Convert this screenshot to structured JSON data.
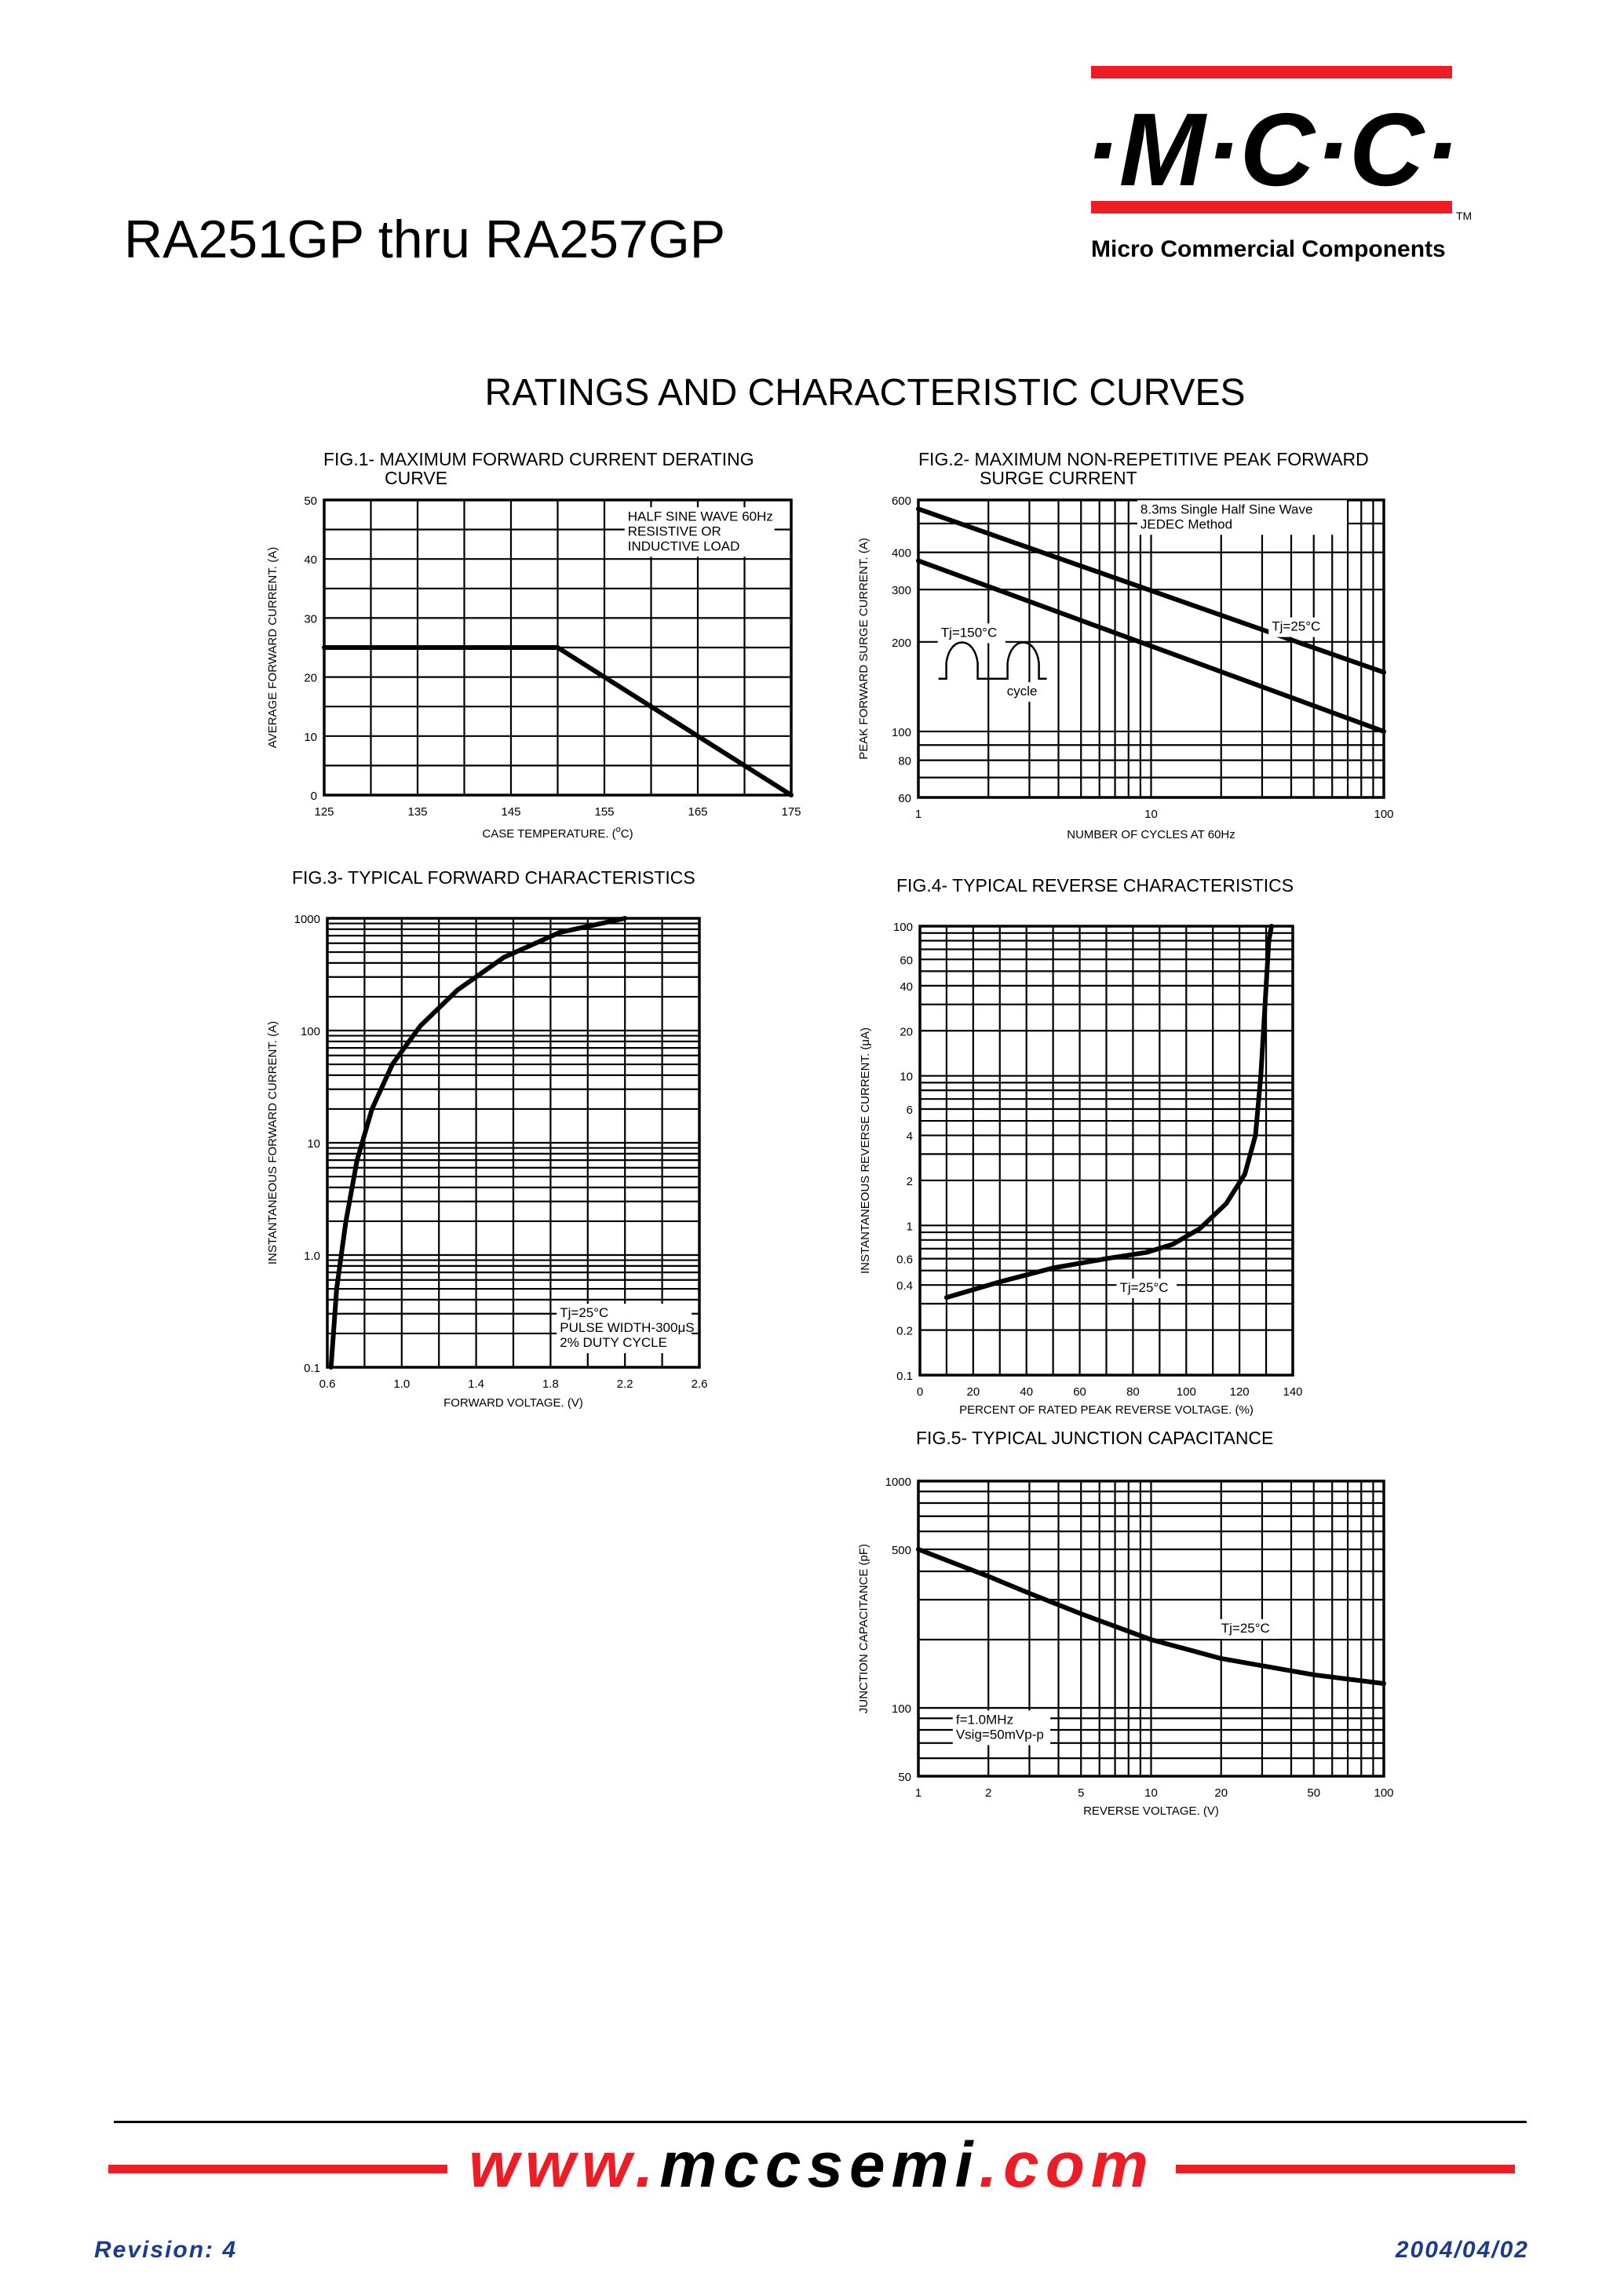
{
  "header": {
    "part_title": "RA251GP thru RA257GP",
    "logo_text": "·M·C·C·",
    "trademark": "TM",
    "company_name": "Micro Commercial Components"
  },
  "section_title": "RATINGS AND CHARACTERISTIC CURVES",
  "colors": {
    "brand_red": "#ee1c24",
    "ink": "#000000",
    "footer_blue": "#1a3b8f"
  },
  "chart_data": [
    {
      "id": "fig1",
      "type": "line",
      "title_lines": [
        "FIG.1- MAXIMUM FORWARD CURRENT DERATING",
        "CURVE"
      ],
      "xlabel": "CASE TEMPERATURE. (",
      "xlabel_super": "o",
      "xlabel_tail": "C)",
      "ylabel": "AVERAGE FORWARD CURRENT. (A)",
      "xscale": "linear",
      "yscale": "linear",
      "xlim": [
        125,
        175
      ],
      "ylim": [
        0,
        50
      ],
      "x_ticks": [
        125,
        135,
        145,
        155,
        165,
        175
      ],
      "y_ticks": [
        0,
        10,
        20,
        30,
        40,
        50
      ],
      "x_grid": [
        125,
        130,
        135,
        140,
        145,
        150,
        155,
        160,
        165,
        170,
        175
      ],
      "y_grid": [
        0,
        5,
        10,
        15,
        20,
        25,
        30,
        35,
        40,
        45,
        50
      ],
      "series": [
        {
          "name": "derating",
          "x": [
            125,
            150,
            175
          ],
          "y": [
            25,
            25,
            0
          ]
        }
      ],
      "annotations": [
        {
          "lines": [
            "HALF SINE WAVE 60Hz",
            "RESISTIVE OR",
            "INDUCTIVE LOAD"
          ],
          "x": 157.5,
          "y": 46.5
        }
      ]
    },
    {
      "id": "fig2",
      "type": "line",
      "title_lines": [
        "FIG.2- MAXIMUM NON-REPETITIVE PEAK FORWARD",
        "SURGE CURRENT"
      ],
      "xlabel": "NUMBER OF CYCLES AT 60Hz",
      "ylabel": "PEAK FORWARD SURGE CURRENT. (A)",
      "xscale": "log",
      "yscale": "log",
      "xlim": [
        1,
        100
      ],
      "ylim": [
        60,
        600
      ],
      "x_ticks": [
        1,
        10,
        100
      ],
      "y_ticks": [
        60,
        80,
        100,
        200,
        300,
        400,
        600
      ],
      "x_grid": [
        1,
        2,
        3,
        4,
        5,
        6,
        7,
        8,
        9,
        10,
        20,
        30,
        40,
        50,
        60,
        70,
        80,
        90,
        100
      ],
      "y_grid": [
        60,
        70,
        80,
        90,
        100,
        200,
        300,
        400,
        500,
        600
      ],
      "series": [
        {
          "name": "upper",
          "x": [
            1,
            100
          ],
          "y": [
            560,
            158
          ]
        },
        {
          "name": "lower",
          "x": [
            1,
            100
          ],
          "y": [
            375,
            100
          ]
        }
      ],
      "annotations": [
        {
          "lines": [
            "8.3ms Single Half Sine Wave",
            "JEDEC Method"
          ],
          "x": 9,
          "y": 540
        },
        {
          "lines": [
            "Tj=25°C"
          ],
          "x": 33,
          "y": 218
        },
        {
          "lines": [
            "Tj=150°C"
          ],
          "x": 1.25,
          "y": 208
        },
        {
          "lines": [
            "cycle"
          ],
          "x": 2.4,
          "y": 132
        }
      ]
    },
    {
      "id": "fig3",
      "type": "line",
      "title_lines": [
        "FIG.3- TYPICAL FORWARD CHARACTERISTICS"
      ],
      "xlabel": "FORWARD VOLTAGE. (V)",
      "ylabel": "INSTANTANEOUS FORWARD CURRENT. (A)",
      "xscale": "linear",
      "yscale": "log",
      "xlim": [
        0.6,
        2.6
      ],
      "ylim": [
        0.1,
        1000
      ],
      "x_ticks": [
        0.6,
        1.0,
        1.4,
        1.8,
        2.2,
        2.6
      ],
      "x_tick_labels": [
        "0.6",
        "1.0",
        "1.4",
        "1.8",
        "2.2",
        "2.6"
      ],
      "y_ticks": [
        0.1,
        1,
        10,
        100,
        1000
      ],
      "y_tick_labels": [
        "0.1",
        "1.0",
        "10",
        "100",
        "1000"
      ],
      "x_grid": [
        0.6,
        0.8,
        1.0,
        1.2,
        1.4,
        1.6,
        1.8,
        2.0,
        2.2,
        2.4,
        2.6
      ],
      "y_grid": [
        0.1,
        0.2,
        0.3,
        0.4,
        0.5,
        0.6,
        0.7,
        0.8,
        0.9,
        1,
        2,
        3,
        4,
        5,
        6,
        7,
        8,
        9,
        10,
        20,
        30,
        40,
        50,
        60,
        70,
        80,
        90,
        100,
        200,
        300,
        400,
        500,
        600,
        700,
        800,
        900,
        1000
      ],
      "series": [
        {
          "name": "Tj=25°C",
          "x": [
            0.62,
            0.65,
            0.7,
            0.76,
            0.84,
            0.95,
            1.1,
            1.3,
            1.55,
            1.85,
            2.2
          ],
          "y": [
            0.1,
            0.5,
            2,
            7,
            20,
            50,
            110,
            230,
            450,
            750,
            1000
          ]
        }
      ],
      "annotations": [
        {
          "lines": [
            "Tj=25°C",
            "PULSE WIDTH-300μS",
            "2% DUTY CYCLE"
          ],
          "x": 1.85,
          "y": 0.28
        }
      ]
    },
    {
      "id": "fig4",
      "type": "line",
      "title_lines": [
        "FIG.4- TYPICAL REVERSE CHARACTERISTICS"
      ],
      "xlabel": "PERCENT OF RATED PEAK REVERSE VOLTAGE. (%)",
      "ylabel": "INSTANTANEOUS REVERSE CURRENT. (μA)",
      "xscale": "linear",
      "yscale": "log",
      "xlim": [
        0,
        140
      ],
      "ylim": [
        0.1,
        100
      ],
      "x_ticks": [
        0,
        20,
        40,
        60,
        80,
        100,
        120,
        140
      ],
      "y_ticks": [
        0.1,
        0.2,
        0.4,
        0.6,
        1,
        2,
        4,
        6,
        10,
        20,
        40,
        60,
        100
      ],
      "x_grid": [
        0,
        10,
        20,
        30,
        40,
        50,
        60,
        70,
        80,
        90,
        100,
        110,
        120,
        130,
        140
      ],
      "y_grid": [
        0.1,
        0.2,
        0.3,
        0.4,
        0.5,
        0.6,
        0.7,
        0.8,
        0.9,
        1,
        2,
        3,
        4,
        5,
        6,
        7,
        8,
        9,
        10,
        20,
        30,
        40,
        50,
        60,
        70,
        80,
        90,
        100
      ],
      "series": [
        {
          "name": "Tj=25°C",
          "x": [
            10,
            30,
            50,
            70,
            85,
            95,
            105,
            115,
            122,
            126,
            128,
            130,
            131,
            132
          ],
          "y": [
            0.33,
            0.42,
            0.52,
            0.6,
            0.66,
            0.75,
            0.95,
            1.4,
            2.2,
            4,
            10,
            40,
            80,
            100
          ]
        }
      ],
      "annotations": [
        {
          "lines": [
            "Tj=25°C"
          ],
          "x": 75,
          "y": 0.36
        }
      ]
    },
    {
      "id": "fig5",
      "type": "line",
      "title_lines": [
        "FIG.5- TYPICAL JUNCTION CAPACITANCE"
      ],
      "xlabel": "REVERSE VOLTAGE. (V)",
      "ylabel": "JUNCTION CAPACITANCE (pF)",
      "xscale": "log",
      "yscale": "log",
      "xlim": [
        1,
        100
      ],
      "ylim": [
        50,
        1000
      ],
      "x_ticks": [
        1,
        2,
        5,
        10,
        20,
        50,
        100
      ],
      "y_ticks": [
        50,
        100,
        500,
        1000
      ],
      "x_grid": [
        1,
        2,
        3,
        4,
        5,
        6,
        7,
        8,
        9,
        10,
        20,
        30,
        40,
        50,
        60,
        70,
        80,
        90,
        100
      ],
      "y_grid": [
        50,
        60,
        70,
        80,
        90,
        100,
        200,
        300,
        400,
        500,
        600,
        700,
        800,
        900,
        1000
      ],
      "series": [
        {
          "name": "Tj=25°C",
          "x": [
            1,
            2,
            3,
            5,
            10,
            20,
            50,
            100
          ],
          "y": [
            500,
            380,
            320,
            260,
            200,
            165,
            140,
            128
          ]
        }
      ],
      "annotations": [
        {
          "lines": [
            "Tj=25°C"
          ],
          "x": 20,
          "y": 215
        },
        {
          "lines": [
            "f=1.0MHz",
            "Vsig=50mVp-p"
          ],
          "x": 1.45,
          "y": 85
        }
      ]
    }
  ],
  "footer": {
    "website_prefix": "www.",
    "website_mid": "mccsemi",
    "website_suffix": ".com",
    "revision": "Revision: 4",
    "date": "2004/04/02"
  }
}
